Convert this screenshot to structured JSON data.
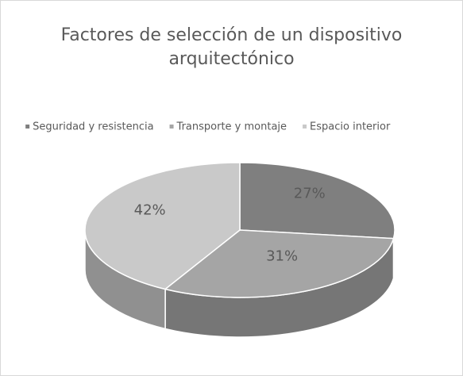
{
  "chart_data": {
    "type": "pie3d",
    "title": "Factores de selección de un dispositivo arquitectónico",
    "categories": [
      "Seguridad y resistencia",
      "Transporte y montaje",
      "Espacio interior"
    ],
    "values": [
      27,
      31,
      42
    ],
    "value_labels": [
      "27%",
      "31%",
      "42%"
    ],
    "colors": [
      "#7f7f7f",
      "#a5a5a5",
      "#c9c9c9"
    ],
    "legend": "top"
  }
}
